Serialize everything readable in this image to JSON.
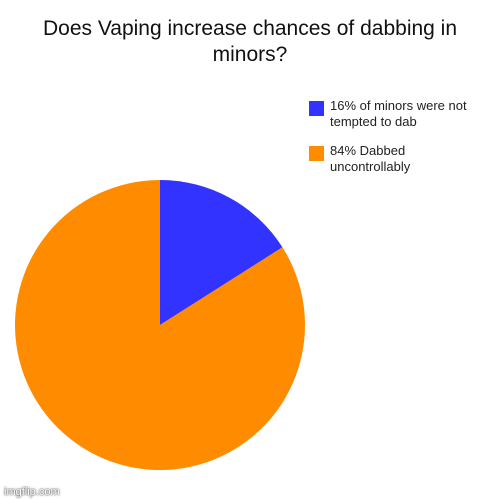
{
  "chart_data": {
    "type": "pie",
    "title": "Does Vaping increase chances of dabbing in minors?",
    "title_lines": [
      "Does Vaping increase chances of dabbing in",
      "minors?"
    ],
    "slices": [
      {
        "label": "16% of minors were not tempted to dab",
        "legend_lines": [
          "16% of minors were not",
          "tempted to dab"
        ],
        "value": 16,
        "color": "#3333ff"
      },
      {
        "label": "84% Dabbed uncontrollably",
        "legend_lines": [
          "84% Dabbed",
          "uncontrollably"
        ],
        "value": 84,
        "color": "#ff8c00"
      }
    ],
    "legend_position": "top-right"
  },
  "watermark": "imgflip.com"
}
